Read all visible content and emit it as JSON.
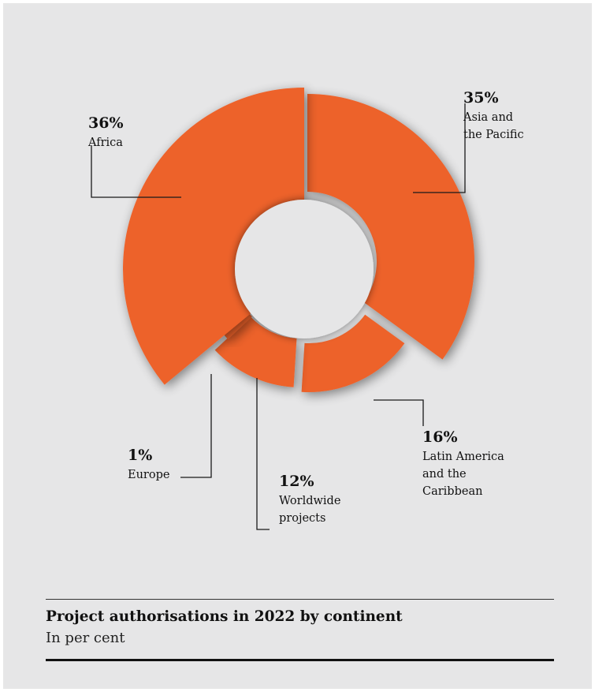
{
  "chart_data": {
    "type": "pie",
    "style": "exploded donut with varying slice radii",
    "title": "Project authorisations in 2022 by continent",
    "subtitle": "In per cent",
    "unit": "%",
    "slices": [
      {
        "label": "Asia and the Pacific",
        "label_lines": [
          "Asia and",
          "the Pacific"
        ],
        "value": 35,
        "value_label": "35%"
      },
      {
        "label": "Latin America and the Caribbean",
        "label_lines": [
          "Latin America",
          "and the",
          "Caribbean"
        ],
        "value": 16,
        "value_label": "16%"
      },
      {
        "label": "Worldwide projects",
        "label_lines": [
          "Worldwide",
          "projects"
        ],
        "value": 12,
        "value_label": "12%"
      },
      {
        "label": "Europe",
        "label_lines": [
          "Europe"
        ],
        "value": 1,
        "value_label": "1%"
      },
      {
        "label": "Africa",
        "label_lines": [
          "Africa"
        ],
        "value": 36,
        "value_label": "36%"
      }
    ],
    "colors": {
      "slice": "#ed622b",
      "hole": "#e6e6e7",
      "background": "#e6e6e7"
    },
    "legend": "none"
  }
}
